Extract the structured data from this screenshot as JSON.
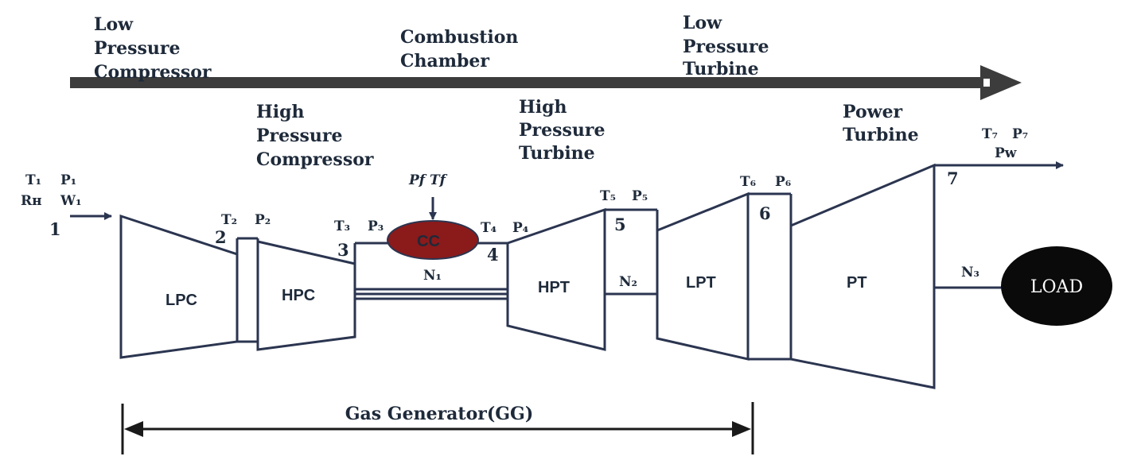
{
  "headings": {
    "low_pressure_compressor": [
      "Low",
      "Pressure",
      "Compressor"
    ],
    "high_pressure_compressor": [
      "High",
      "Pressure",
      "Compressor"
    ],
    "combustion_chamber": [
      "Combustion",
      "Chamber"
    ],
    "high_pressure_turbine": [
      "High",
      "Pressure",
      "Turbine"
    ],
    "low_pressure_turbine": [
      "Low",
      "Pressure",
      "Turbine"
    ],
    "power_turbine": [
      "Power",
      "Turbine"
    ]
  },
  "components": {
    "lpc": "LPC",
    "hpc": "HPC",
    "cc": "CC",
    "hpt": "HPT",
    "lpt": "LPT",
    "pt": "PT",
    "load": "LOAD"
  },
  "stations": {
    "s1": "1",
    "s2": "2",
    "s3": "3",
    "s4": "4",
    "s5": "5",
    "s6": "6",
    "s7": "7"
  },
  "symbols": {
    "t1": "T₁",
    "p1": "P₁",
    "rh": "Rʜ",
    "w1": "W₁",
    "t2": "T₂",
    "p2": "P₂",
    "t3": "T₃",
    "p3": "P₃",
    "fuel": "Pf Tf",
    "t4": "T₄",
    "p4": "P₄",
    "t5": "T₅",
    "p5": "P₅",
    "t6": "T₆",
    "p6": "P₆",
    "t7": "T₇",
    "p7": "P₇",
    "pw": "Pᴡ",
    "n1": "N₁",
    "n2": "N₂",
    "n3": "N₃"
  },
  "gas_generator_label": "Gas Generator(GG)",
  "colors": {
    "line": "#2b3550",
    "flow_arrow": "#3c3c3c",
    "combustor": "#8b1a1a",
    "load": "#0a0a0a",
    "text": "#1e2a3a"
  }
}
